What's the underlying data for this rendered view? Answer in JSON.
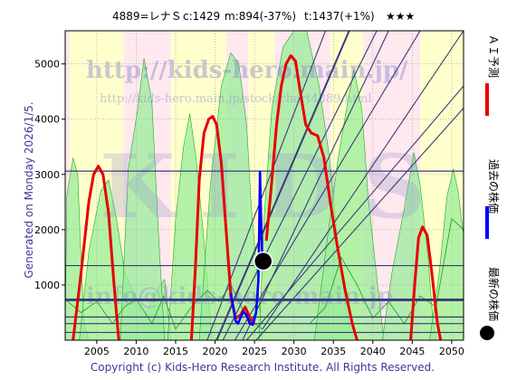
{
  "header": {
    "code": "4889=レナＳ",
    "current": "c:1429",
    "mid": "m:894(-37%)",
    "target": "t:1437(+1%)",
    "stars": "★★★"
  },
  "side_left": "Generated on Monday 2026/1/5.",
  "watermark": {
    "url": "http://kids-hero.main.jp/",
    "url2": "http://kids-hero.main.jp/stock/chart4889.html",
    "big": "KIDS",
    "email": "info@kids-hero.main.jp"
  },
  "footer": "Copyright (c) Kids-Hero Research Institute. All Rights Reserved.",
  "legend": {
    "ai": "ＡＩ予測",
    "past": "過去の株価",
    "latest": "最新の株価"
  },
  "colors": {
    "ai_line": "#e60000",
    "price_line": "#0000ff",
    "trend_line": "#3a3a78",
    "green_fill": "#99ee99",
    "yellow_fill": "#ffffcc",
    "pink_fill": "#ffe8ee"
  },
  "chart_data": {
    "type": "line",
    "xlim": [
      2001.0,
      2051.5
    ],
    "ylim": [
      0,
      5600
    ],
    "xticks": [
      2005,
      2010,
      2015,
      2020,
      2025,
      2030,
      2035,
      2040,
      2045,
      2050
    ],
    "yticks": [
      1000,
      2000,
      3000,
      4000,
      5000
    ],
    "grid": true,
    "current_point": {
      "x": 2026.1,
      "y": 1429
    },
    "horizontal_levels": [
      3060,
      1350,
      740,
      720,
      420,
      300,
      140
    ],
    "series": [
      {
        "name": "ＡＩ予測",
        "segments": [
          [
            [
              2002.0,
              0
            ],
            [
              2003.0,
              1200
            ],
            [
              2004.0,
              2500
            ],
            [
              2004.6,
              3000
            ],
            [
              2005.2,
              3150
            ],
            [
              2005.8,
              3000
            ],
            [
              2006.5,
              2300
            ],
            [
              2007.2,
              1000
            ],
            [
              2007.8,
              0
            ]
          ],
          [
            [
              2017.0,
              0
            ],
            [
              2017.5,
              1300
            ],
            [
              2018.0,
              2900
            ],
            [
              2018.6,
              3750
            ],
            [
              2019.2,
              4000
            ],
            [
              2019.7,
              4050
            ],
            [
              2020.2,
              3900
            ],
            [
              2020.8,
              3200
            ],
            [
              2021.5,
              1800
            ],
            [
              2022.0,
              800
            ],
            [
              2022.6,
              400
            ],
            [
              2023.2,
              450
            ],
            [
              2023.8,
              600
            ],
            [
              2024.3,
              450
            ],
            [
              2024.8,
              300
            ]
          ],
          [
            [
              2026.5,
              1800
            ],
            [
              2027.2,
              2900
            ],
            [
              2027.8,
              3900
            ],
            [
              2028.4,
              4600
            ],
            [
              2029.0,
              5000
            ],
            [
              2029.6,
              5150
            ],
            [
              2030.2,
              5050
            ],
            [
              2030.8,
              4500
            ],
            [
              2031.5,
              3900
            ],
            [
              2032.2,
              3750
            ],
            [
              2033.0,
              3700
            ],
            [
              2033.8,
              3300
            ],
            [
              2034.6,
              2500
            ],
            [
              2035.5,
              1700
            ],
            [
              2036.5,
              900
            ],
            [
              2037.4,
              300
            ],
            [
              2038.0,
              0
            ]
          ],
          [
            [
              2044.8,
              0
            ],
            [
              2045.3,
              1000
            ],
            [
              2045.8,
              1850
            ],
            [
              2046.3,
              2050
            ],
            [
              2046.9,
              1900
            ],
            [
              2047.5,
              1200
            ],
            [
              2048.2,
              300
            ],
            [
              2048.6,
              0
            ]
          ]
        ]
      },
      {
        "name": "過去の株価",
        "points": [
          [
            2022.0,
            850
          ],
          [
            2022.3,
            600
          ],
          [
            2022.6,
            350
          ],
          [
            2022.9,
            300
          ],
          [
            2023.2,
            400
          ],
          [
            2023.6,
            520
          ],
          [
            2024.0,
            450
          ],
          [
            2024.4,
            300
          ],
          [
            2024.8,
            280
          ],
          [
            2025.2,
            500
          ],
          [
            2025.5,
            1100
          ],
          [
            2025.7,
            3050
          ],
          [
            2025.8,
            2400
          ],
          [
            2025.95,
            1600
          ],
          [
            2026.1,
            1429
          ]
        ]
      }
    ]
  }
}
